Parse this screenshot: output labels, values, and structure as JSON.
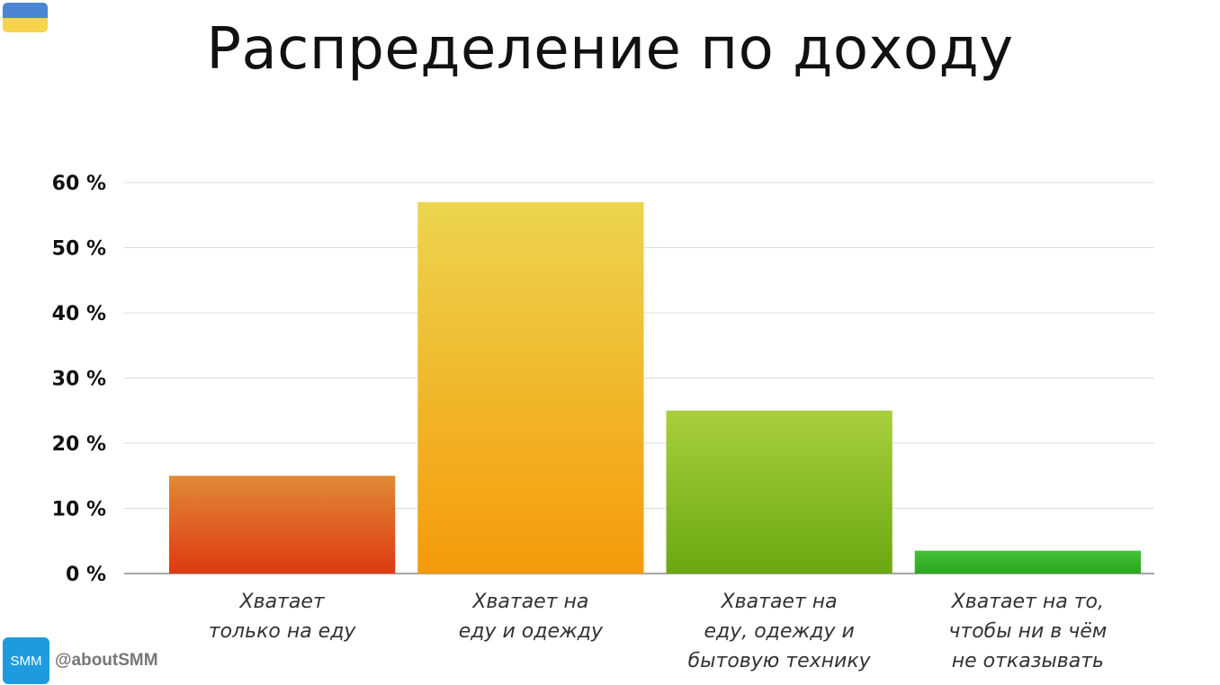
{
  "title": "Распределение по доходу",
  "brand": {
    "logo_text": "SMM",
    "handle": "@aboutSMM",
    "logo_color": "#1e9be0"
  },
  "flag": {
    "top_color": "#4a86d4",
    "bottom_color": "#f7d44a"
  },
  "chart_data": {
    "type": "bar",
    "categories": [
      [
        "Хватает",
        "только на еду"
      ],
      [
        "Хватает на",
        "еду и одежду"
      ],
      [
        "Хватает на",
        "еду, одежду и",
        "бытовую технику"
      ],
      [
        "Хватает на то,",
        "чтобы ни в чём",
        "не отказывать"
      ]
    ],
    "values": [
      15,
      57,
      25,
      3.5
    ],
    "bar_colors": [
      [
        "#e08a36",
        "#dd3a10"
      ],
      [
        "#ecd54e",
        "#f59a0a"
      ],
      [
        "#a9cf3e",
        "#6aa812"
      ],
      [
        "#46c03a",
        "#2aa71c"
      ]
    ],
    "ylim": [
      0,
      60
    ],
    "yticks": [
      0,
      10,
      20,
      30,
      40,
      50,
      60
    ],
    "ytick_suffix": " %",
    "grid": true
  }
}
